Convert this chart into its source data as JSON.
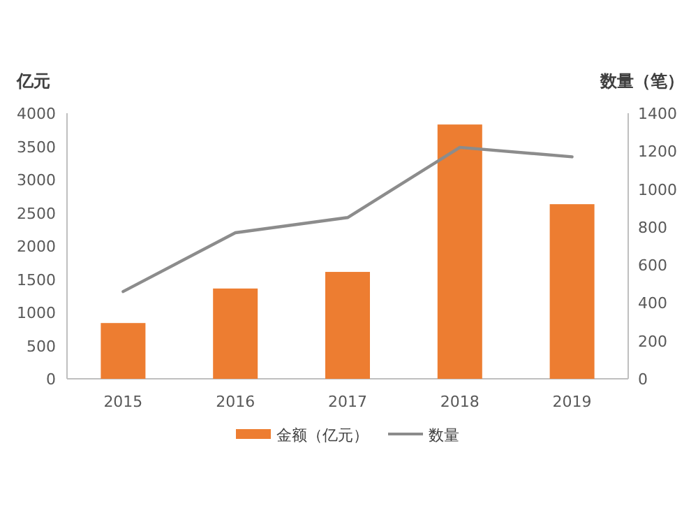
{
  "chart_data": {
    "type": "bar",
    "ylabel": "亿元",
    "y2label": "数量（笔）",
    "categories": [
      "2015",
      "2016",
      "2017",
      "2018",
      "2019"
    ],
    "series": [
      {
        "name": "金额（亿元）",
        "color": "#ed7d31",
        "values": [
          840,
          1360,
          1610,
          3830,
          2630
        ]
      },
      {
        "name": "数量",
        "type": "line",
        "axis": "y2",
        "color": "#8c8c8c",
        "values": [
          460,
          770,
          850,
          1220,
          1170
        ]
      }
    ],
    "ylim": [
      0,
      4000
    ],
    "yticks": [
      0,
      500,
      1000,
      1500,
      2000,
      2500,
      3000,
      3500,
      4000
    ],
    "y2lim": [
      0,
      1400
    ],
    "y2ticks": [
      0,
      200,
      400,
      600,
      800,
      1000,
      1200,
      1400
    ],
    "legend": "bottom"
  }
}
